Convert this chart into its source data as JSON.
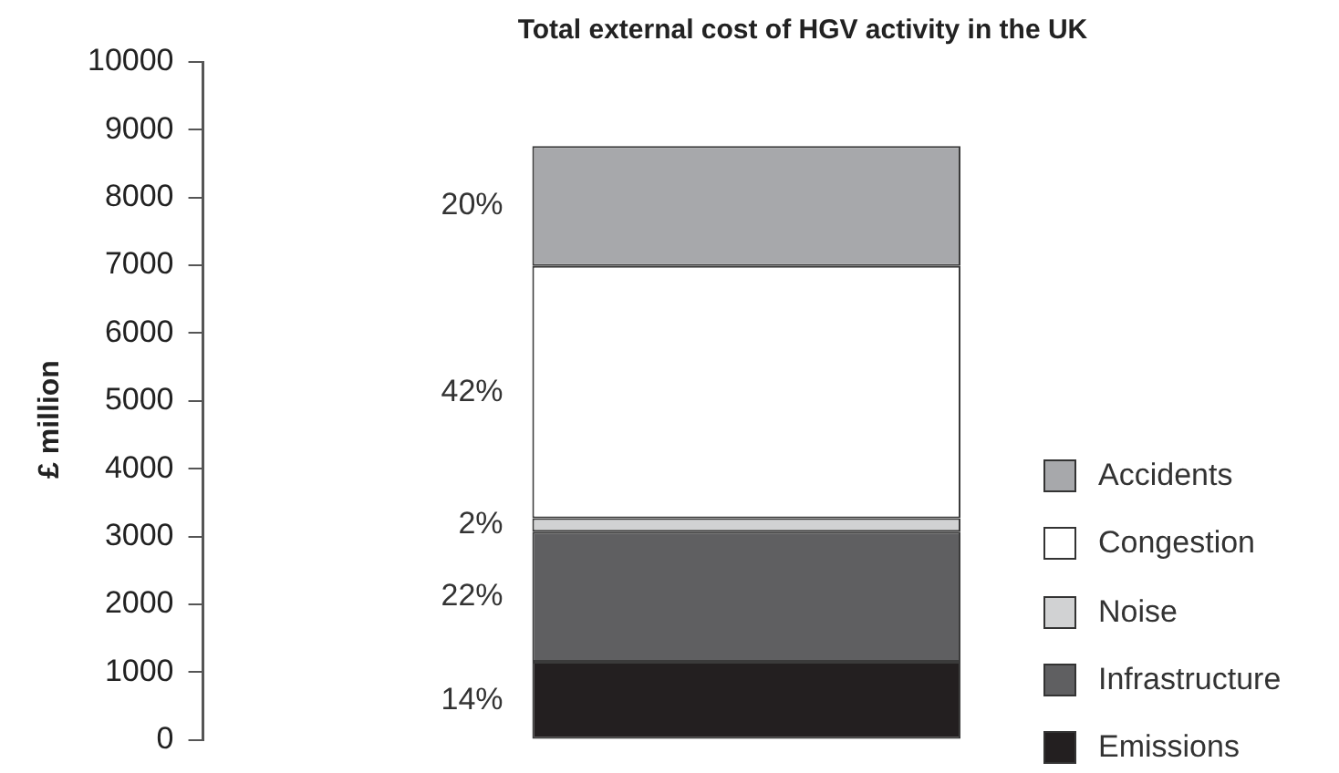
{
  "chart_data": {
    "type": "bar",
    "title": "Total external cost of HGV activity in the UK",
    "ylabel": "£ million",
    "categories": [
      null
    ],
    "stacked": true,
    "ylim": [
      0,
      10000
    ],
    "yticks": [
      0,
      1000,
      2000,
      3000,
      4000,
      5000,
      6000,
      7000,
      8000,
      9000,
      10000
    ],
    "grid": false,
    "legend": "bottom right",
    "series": [
      {
        "name": "Emissions",
        "color": "#231f20",
        "values": [
          1150
        ]
      },
      {
        "name": "Infrastructure",
        "color": "#5f5f61",
        "values": [
          1920
        ]
      },
      {
        "name": "Noise",
        "color": "#d1d2d3",
        "values": [
          200
        ]
      },
      {
        "name": "Congestion",
        "color": "#ffffff",
        "values": [
          3720
        ]
      },
      {
        "name": "Accidents",
        "color": "#a7a8ab",
        "values": [
          1770
        ]
      }
    ],
    "annotations": [
      "14%",
      "22%",
      "2%",
      "42%",
      "20%"
    ]
  }
}
